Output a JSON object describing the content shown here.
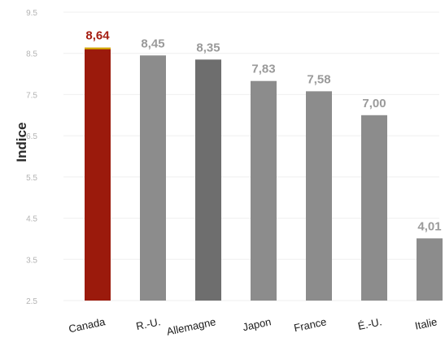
{
  "chart_data": {
    "type": "bar",
    "ylabel": "Indice",
    "xlabel": "",
    "ylim": [
      2.5,
      9.5
    ],
    "yticks": [
      "2.5",
      "3.5",
      "4.5",
      "5.5",
      "6.5",
      "7.5",
      "8.5",
      "9.5"
    ],
    "grid": true,
    "categories": [
      "Canada",
      "R.-U.",
      "Allemagne",
      "Japon",
      "France",
      "É.-U.",
      "Italie"
    ],
    "values": [
      8.64,
      8.45,
      8.35,
      7.83,
      7.58,
      7.0,
      4.01
    ],
    "value_labels": [
      "8,64",
      "8,45",
      "8,35",
      "7,83",
      "7,58",
      "7,00",
      "4,01"
    ],
    "colors": {
      "highlight": "#9b1a0c",
      "bars": [
        "#9b1a0c",
        "#8c8c8c",
        "#6e6e6e",
        "#8c8c8c",
        "#8c8c8c",
        "#8c8c8c",
        "#8c8c8c"
      ]
    }
  }
}
